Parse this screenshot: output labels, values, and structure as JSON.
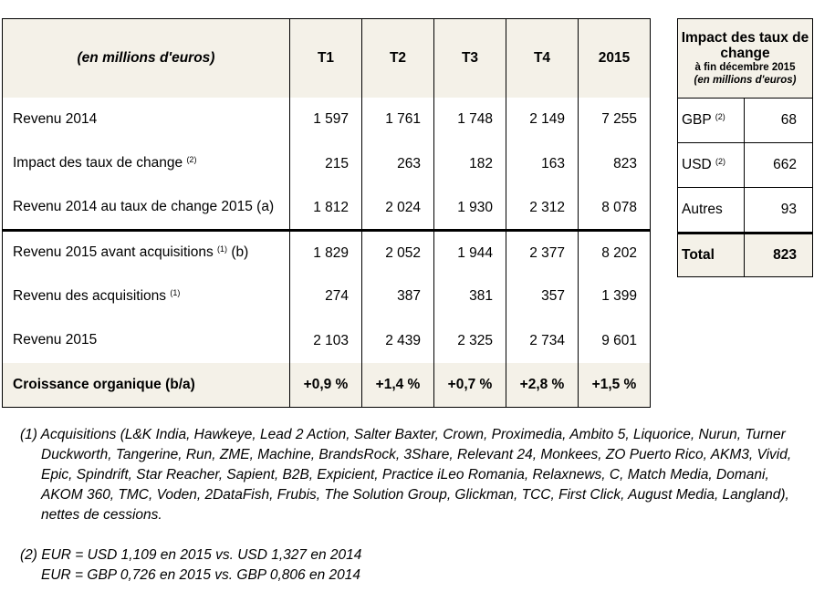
{
  "main_table": {
    "header": {
      "label": "(en millions d'euros)",
      "columns": [
        "T1",
        "T2",
        "T3",
        "T4",
        "2015"
      ]
    },
    "rows": [
      {
        "label": "Revenu 2014",
        "note": "",
        "suffix": "",
        "values": [
          "1 597",
          "1 761",
          "1 748",
          "2 149",
          "7 255"
        ]
      },
      {
        "label": "Impact des taux de change",
        "note": "(2)",
        "suffix": "",
        "values": [
          "215",
          "263",
          "182",
          "163",
          "823"
        ]
      },
      {
        "label": "Revenu 2014 au taux de change 2015 (a)",
        "note": "",
        "suffix": "",
        "values": [
          "1 812",
          "2 024",
          "1 930",
          "2 312",
          "8 078"
        ]
      },
      {
        "label": "Revenu 2015 avant acquisitions",
        "note": "(1)",
        "suffix": "(b)",
        "values": [
          "1 829",
          "2 052",
          "1 944",
          "2 377",
          "8 202"
        ]
      },
      {
        "label": "Revenu des acquisitions",
        "note": "(1)",
        "suffix": "",
        "values": [
          "274",
          "387",
          "381",
          "357",
          "1 399"
        ]
      },
      {
        "label": "Revenu 2015",
        "note": "",
        "suffix": "",
        "values": [
          "2 103",
          "2 439",
          "2 325",
          "2 734",
          "9 601"
        ]
      }
    ],
    "growth": {
      "label": "Croissance organique (b/a)",
      "values": [
        "+0,9 %",
        "+1,4 %",
        "+0,7 %",
        "+2,8 %",
        "+1,5 %"
      ]
    }
  },
  "side_table": {
    "title": "Impact des taux de change",
    "subtitle": "à fin décembre 2015",
    "unit": "(en millions d'euros)",
    "rows": [
      {
        "label": "GBP",
        "note": "(2)",
        "value": "68"
      },
      {
        "label": "USD",
        "note": "(2)",
        "value": "662"
      },
      {
        "label": "Autres",
        "note": "",
        "value": "93"
      }
    ],
    "total": {
      "label": "Total",
      "value": "823"
    }
  },
  "footnotes": {
    "note1": "(1) Acquisitions (L&K India, Hawkeye, Lead 2 Action, Salter Baxter, Crown, Proximedia, Ambito 5, Liquorice, Nurun, Turner Duckworth, Tangerine, Run, ZME, Machine, BrandsRock, 3Share, Relevant 24, Monkees, ZO Puerto Rico, AKM3, Vivid, Epic, Spindrift, Star Reacher, Sapient, B2B, Expicient, Practice iLeo Romania, Relaxnews, C, Match Media, Domani, AKOM 360, TMC, Voden, 2DataFish, Frubis, The Solution Group, Glickman, TCC, First Click, August Media, Langland), nettes de cessions.",
    "note2_line1": "(2) EUR = USD 1,109 en 2015 vs. USD 1,327 en 2014",
    "note2_line2": "EUR = GBP 0,726 en 2015 vs. GBP 0,806 en 2014"
  }
}
